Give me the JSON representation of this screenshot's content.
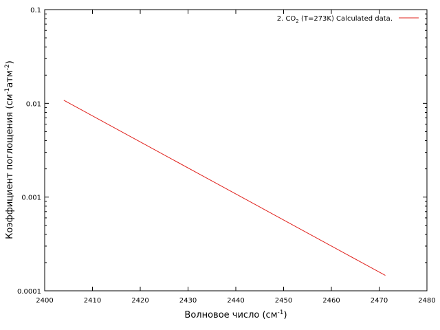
{
  "chart_data": {
    "type": "line",
    "title": "",
    "xlabel": "Волновое число (см",
    "xlabel_sup": "-1",
    "xlabel_tail": ")",
    "ylabel": "Коэффициент поглощения (см",
    "ylabel_sup1": "-1",
    "ylabel_mid": "атм",
    "ylabel_sup2": "-2",
    "ylabel_tail": ")",
    "xlim": [
      2400,
      2480
    ],
    "ylim": [
      0.0001,
      0.1
    ],
    "y_scale": "log",
    "x_ticks": [
      "2400",
      "2410",
      "2420",
      "2430",
      "2440",
      "2450",
      "2460",
      "2470",
      "2480"
    ],
    "y_ticks": [
      "0.0001",
      "0.001",
      "0.01",
      "0.1"
    ],
    "grid": false,
    "legend_position": "top-right",
    "legend": {
      "pre": "2. CO",
      "sub": "2",
      "post": " (T=273K) Calculated data."
    },
    "series": [
      {
        "name": "2. CO2 (T=273K) Calculated data.",
        "color": "#e0201b",
        "x": [
          2404.0,
          2471.3
        ],
        "y": [
          0.0108,
          0.000146
        ]
      }
    ]
  }
}
